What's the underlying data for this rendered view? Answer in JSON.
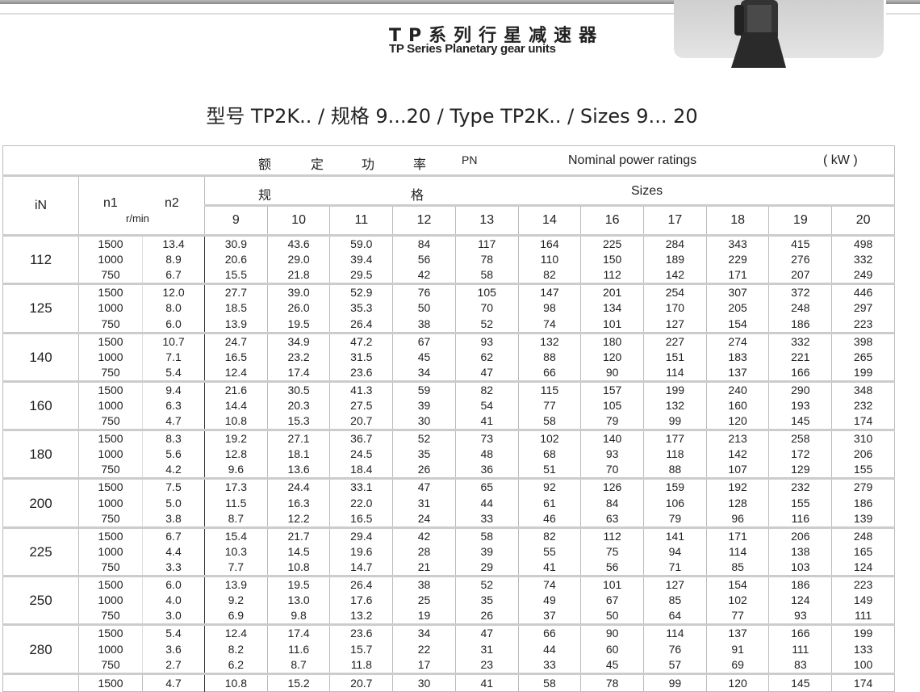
{
  "header": {
    "title_cn": "TP系列行星减速器",
    "title_en": "TP Series Planetary gear units"
  },
  "subtitle": "型号 TP2K.. / 规格 9...20 / Type TP2K.. / Sizes 9... 20",
  "table": {
    "power_cn": [
      "额",
      "定",
      "功",
      "率"
    ],
    "power_symbol": "PN",
    "power_en": "Nominal power ratings",
    "unit": "( kW )",
    "sizes_cn": [
      "规",
      "格"
    ],
    "sizes_en": "Sizes",
    "col_iN": "iN",
    "col_n1": "n1",
    "col_n2": "n2",
    "speed_unit": "r/min",
    "sizes": [
      "9",
      "10",
      "11",
      "12",
      "13",
      "14",
      "16",
      "17",
      "18",
      "19",
      "20"
    ],
    "groups": [
      {
        "iN": "112",
        "rows": [
          [
            "1500",
            "13.4",
            "30.9",
            "43.6",
            "59.0",
            "84",
            "117",
            "164",
            "225",
            "284",
            "343",
            "415",
            "498"
          ],
          [
            "1000",
            "8.9",
            "20.6",
            "29.0",
            "39.4",
            "56",
            "78",
            "110",
            "150",
            "189",
            "229",
            "276",
            "332"
          ],
          [
            "750",
            "6.7",
            "15.5",
            "21.8",
            "29.5",
            "42",
            "58",
            "82",
            "112",
            "142",
            "171",
            "207",
            "249"
          ]
        ]
      },
      {
        "iN": "125",
        "rows": [
          [
            "1500",
            "12.0",
            "27.7",
            "39.0",
            "52.9",
            "76",
            "105",
            "147",
            "201",
            "254",
            "307",
            "372",
            "446"
          ],
          [
            "1000",
            "8.0",
            "18.5",
            "26.0",
            "35.3",
            "50",
            "70",
            "98",
            "134",
            "170",
            "205",
            "248",
            "297"
          ],
          [
            "750",
            "6.0",
            "13.9",
            "19.5",
            "26.4",
            "38",
            "52",
            "74",
            "101",
            "127",
            "154",
            "186",
            "223"
          ]
        ]
      },
      {
        "iN": "140",
        "rows": [
          [
            "1500",
            "10.7",
            "24.7",
            "34.9",
            "47.2",
            "67",
            "93",
            "132",
            "180",
            "227",
            "274",
            "332",
            "398"
          ],
          [
            "1000",
            "7.1",
            "16.5",
            "23.2",
            "31.5",
            "45",
            "62",
            "88",
            "120",
            "151",
            "183",
            "221",
            "265"
          ],
          [
            "750",
            "5.4",
            "12.4",
            "17.4",
            "23.6",
            "34",
            "47",
            "66",
            "90",
            "114",
            "137",
            "166",
            "199"
          ]
        ]
      },
      {
        "iN": "160",
        "rows": [
          [
            "1500",
            "9.4",
            "21.6",
            "30.5",
            "41.3",
            "59",
            "82",
            "115",
            "157",
            "199",
            "240",
            "290",
            "348"
          ],
          [
            "1000",
            "6.3",
            "14.4",
            "20.3",
            "27.5",
            "39",
            "54",
            "77",
            "105",
            "132",
            "160",
            "193",
            "232"
          ],
          [
            "750",
            "4.7",
            "10.8",
            "15.3",
            "20.7",
            "30",
            "41",
            "58",
            "79",
            "99",
            "120",
            "145",
            "174"
          ]
        ]
      },
      {
        "iN": "180",
        "rows": [
          [
            "1500",
            "8.3",
            "19.2",
            "27.1",
            "36.7",
            "52",
            "73",
            "102",
            "140",
            "177",
            "213",
            "258",
            "310"
          ],
          [
            "1000",
            "5.6",
            "12.8",
            "18.1",
            "24.5",
            "35",
            "48",
            "68",
            "93",
            "118",
            "142",
            "172",
            "206"
          ],
          [
            "750",
            "4.2",
            "9.6",
            "13.6",
            "18.4",
            "26",
            "36",
            "51",
            "70",
            "88",
            "107",
            "129",
            "155"
          ]
        ]
      },
      {
        "iN": "200",
        "rows": [
          [
            "1500",
            "7.5",
            "17.3",
            "24.4",
            "33.1",
            "47",
            "65",
            "92",
            "126",
            "159",
            "192",
            "232",
            "279"
          ],
          [
            "1000",
            "5.0",
            "11.5",
            "16.3",
            "22.0",
            "31",
            "44",
            "61",
            "84",
            "106",
            "128",
            "155",
            "186"
          ],
          [
            "750",
            "3.8",
            "8.7",
            "12.2",
            "16.5",
            "24",
            "33",
            "46",
            "63",
            "79",
            "96",
            "116",
            "139"
          ]
        ]
      },
      {
        "iN": "225",
        "rows": [
          [
            "1500",
            "6.7",
            "15.4",
            "21.7",
            "29.4",
            "42",
            "58",
            "82",
            "112",
            "141",
            "171",
            "206",
            "248"
          ],
          [
            "1000",
            "4.4",
            "10.3",
            "14.5",
            "19.6",
            "28",
            "39",
            "55",
            "75",
            "94",
            "114",
            "138",
            "165"
          ],
          [
            "750",
            "3.3",
            "7.7",
            "10.8",
            "14.7",
            "21",
            "29",
            "41",
            "56",
            "71",
            "85",
            "103",
            "124"
          ]
        ]
      },
      {
        "iN": "250",
        "rows": [
          [
            "1500",
            "6.0",
            "13.9",
            "19.5",
            "26.4",
            "38",
            "52",
            "74",
            "101",
            "127",
            "154",
            "186",
            "223"
          ],
          [
            "1000",
            "4.0",
            "9.2",
            "13.0",
            "17.6",
            "25",
            "35",
            "49",
            "67",
            "85",
            "102",
            "124",
            "149"
          ],
          [
            "750",
            "3.0",
            "6.9",
            "9.8",
            "13.2",
            "19",
            "26",
            "37",
            "50",
            "64",
            "77",
            "93",
            "111"
          ]
        ]
      },
      {
        "iN": "280",
        "rows": [
          [
            "1500",
            "5.4",
            "12.4",
            "17.4",
            "23.6",
            "34",
            "47",
            "66",
            "90",
            "114",
            "137",
            "166",
            "199"
          ],
          [
            "1000",
            "3.6",
            "8.2",
            "11.6",
            "15.7",
            "22",
            "31",
            "44",
            "60",
            "76",
            "91",
            "111",
            "133"
          ],
          [
            "750",
            "2.7",
            "6.2",
            "8.7",
            "11.8",
            "17",
            "23",
            "33",
            "45",
            "57",
            "69",
            "83",
            "100"
          ]
        ]
      }
    ],
    "partial_row": [
      "1500",
      "4.7",
      "10.8",
      "15.2",
      "20.7",
      "30",
      "41",
      "58",
      "78",
      "99",
      "120",
      "145",
      "174"
    ]
  }
}
